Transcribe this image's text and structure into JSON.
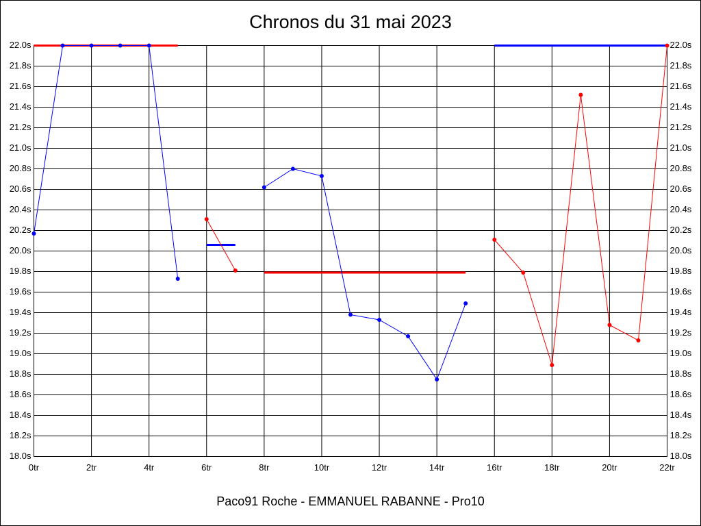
{
  "chart_data": {
    "type": "line",
    "title": "Chronos du 31 mai 2023",
    "x_label": "Paco91 Roche - EMMANUEL RABANNE - Pro10",
    "x": [
      0,
      1,
      2,
      3,
      4,
      5,
      6,
      7,
      8,
      9,
      10,
      11,
      12,
      13,
      14,
      15,
      16,
      17,
      18,
      19,
      20,
      21,
      22
    ],
    "xlim": [
      0,
      22
    ],
    "xticks": [
      {
        "value": 0,
        "label": "0tr"
      },
      {
        "value": 2,
        "label": "2tr"
      },
      {
        "value": 4,
        "label": "4tr"
      },
      {
        "value": 6,
        "label": "6tr"
      },
      {
        "value": 8,
        "label": "8tr"
      },
      {
        "value": 10,
        "label": "10tr"
      },
      {
        "value": 12,
        "label": "12tr"
      },
      {
        "value": 14,
        "label": "14tr"
      },
      {
        "value": 16,
        "label": "16tr"
      },
      {
        "value": 18,
        "label": "18tr"
      },
      {
        "value": 20,
        "label": "20tr"
      },
      {
        "value": 22,
        "label": "22tr"
      }
    ],
    "ylim": [
      18.0,
      22.0
    ],
    "yticks": [
      {
        "value": 18.0,
        "label": "18.0s"
      },
      {
        "value": 18.2,
        "label": "18.2s"
      },
      {
        "value": 18.4,
        "label": "18.4s"
      },
      {
        "value": 18.6,
        "label": "18.6s"
      },
      {
        "value": 18.8,
        "label": "18.8s"
      },
      {
        "value": 19.0,
        "label": "19.0s"
      },
      {
        "value": 19.2,
        "label": "19.2s"
      },
      {
        "value": 19.4,
        "label": "19.4s"
      },
      {
        "value": 19.6,
        "label": "19.6s"
      },
      {
        "value": 19.8,
        "label": "19.8s"
      },
      {
        "value": 20.0,
        "label": "20.0s"
      },
      {
        "value": 20.2,
        "label": "20.2s"
      },
      {
        "value": 20.4,
        "label": "20.4s"
      },
      {
        "value": 20.6,
        "label": "20.6s"
      },
      {
        "value": 20.8,
        "label": "20.8s"
      },
      {
        "value": 21.0,
        "label": "21.0s"
      },
      {
        "value": 21.2,
        "label": "21.2s"
      },
      {
        "value": 21.4,
        "label": "21.4s"
      },
      {
        "value": 21.6,
        "label": "21.6s"
      },
      {
        "value": 21.8,
        "label": "21.8s"
      },
      {
        "value": 22.0,
        "label": "22.0s"
      }
    ],
    "grid": true,
    "series": [
      {
        "color": "#0000ff",
        "values": [
          20.17,
          22.0,
          22.0,
          22.0,
          22.0,
          19.73,
          null,
          null,
          20.62,
          20.8,
          20.73,
          19.38,
          19.33,
          19.17,
          18.75,
          19.49,
          null,
          null,
          null,
          null,
          null,
          null,
          null
        ]
      },
      {
        "color": "#ff0000",
        "values": [
          null,
          null,
          null,
          null,
          null,
          null,
          20.31,
          19.81,
          null,
          null,
          null,
          null,
          null,
          null,
          null,
          null,
          20.11,
          19.79,
          18.89,
          21.52,
          19.28,
          19.13,
          22.0
        ]
      }
    ],
    "segments": [
      {
        "x": [
          0,
          5
        ],
        "value": 22.0,
        "color": "#ff0000"
      },
      {
        "x": [
          6,
          7
        ],
        "value": 20.06,
        "color": "#0000ff"
      },
      {
        "x": [
          8,
          15
        ],
        "value": 19.79,
        "color": "#ff0000"
      },
      {
        "x": [
          16,
          22
        ],
        "value": 22.0,
        "color": "#0000ff"
      }
    ]
  }
}
